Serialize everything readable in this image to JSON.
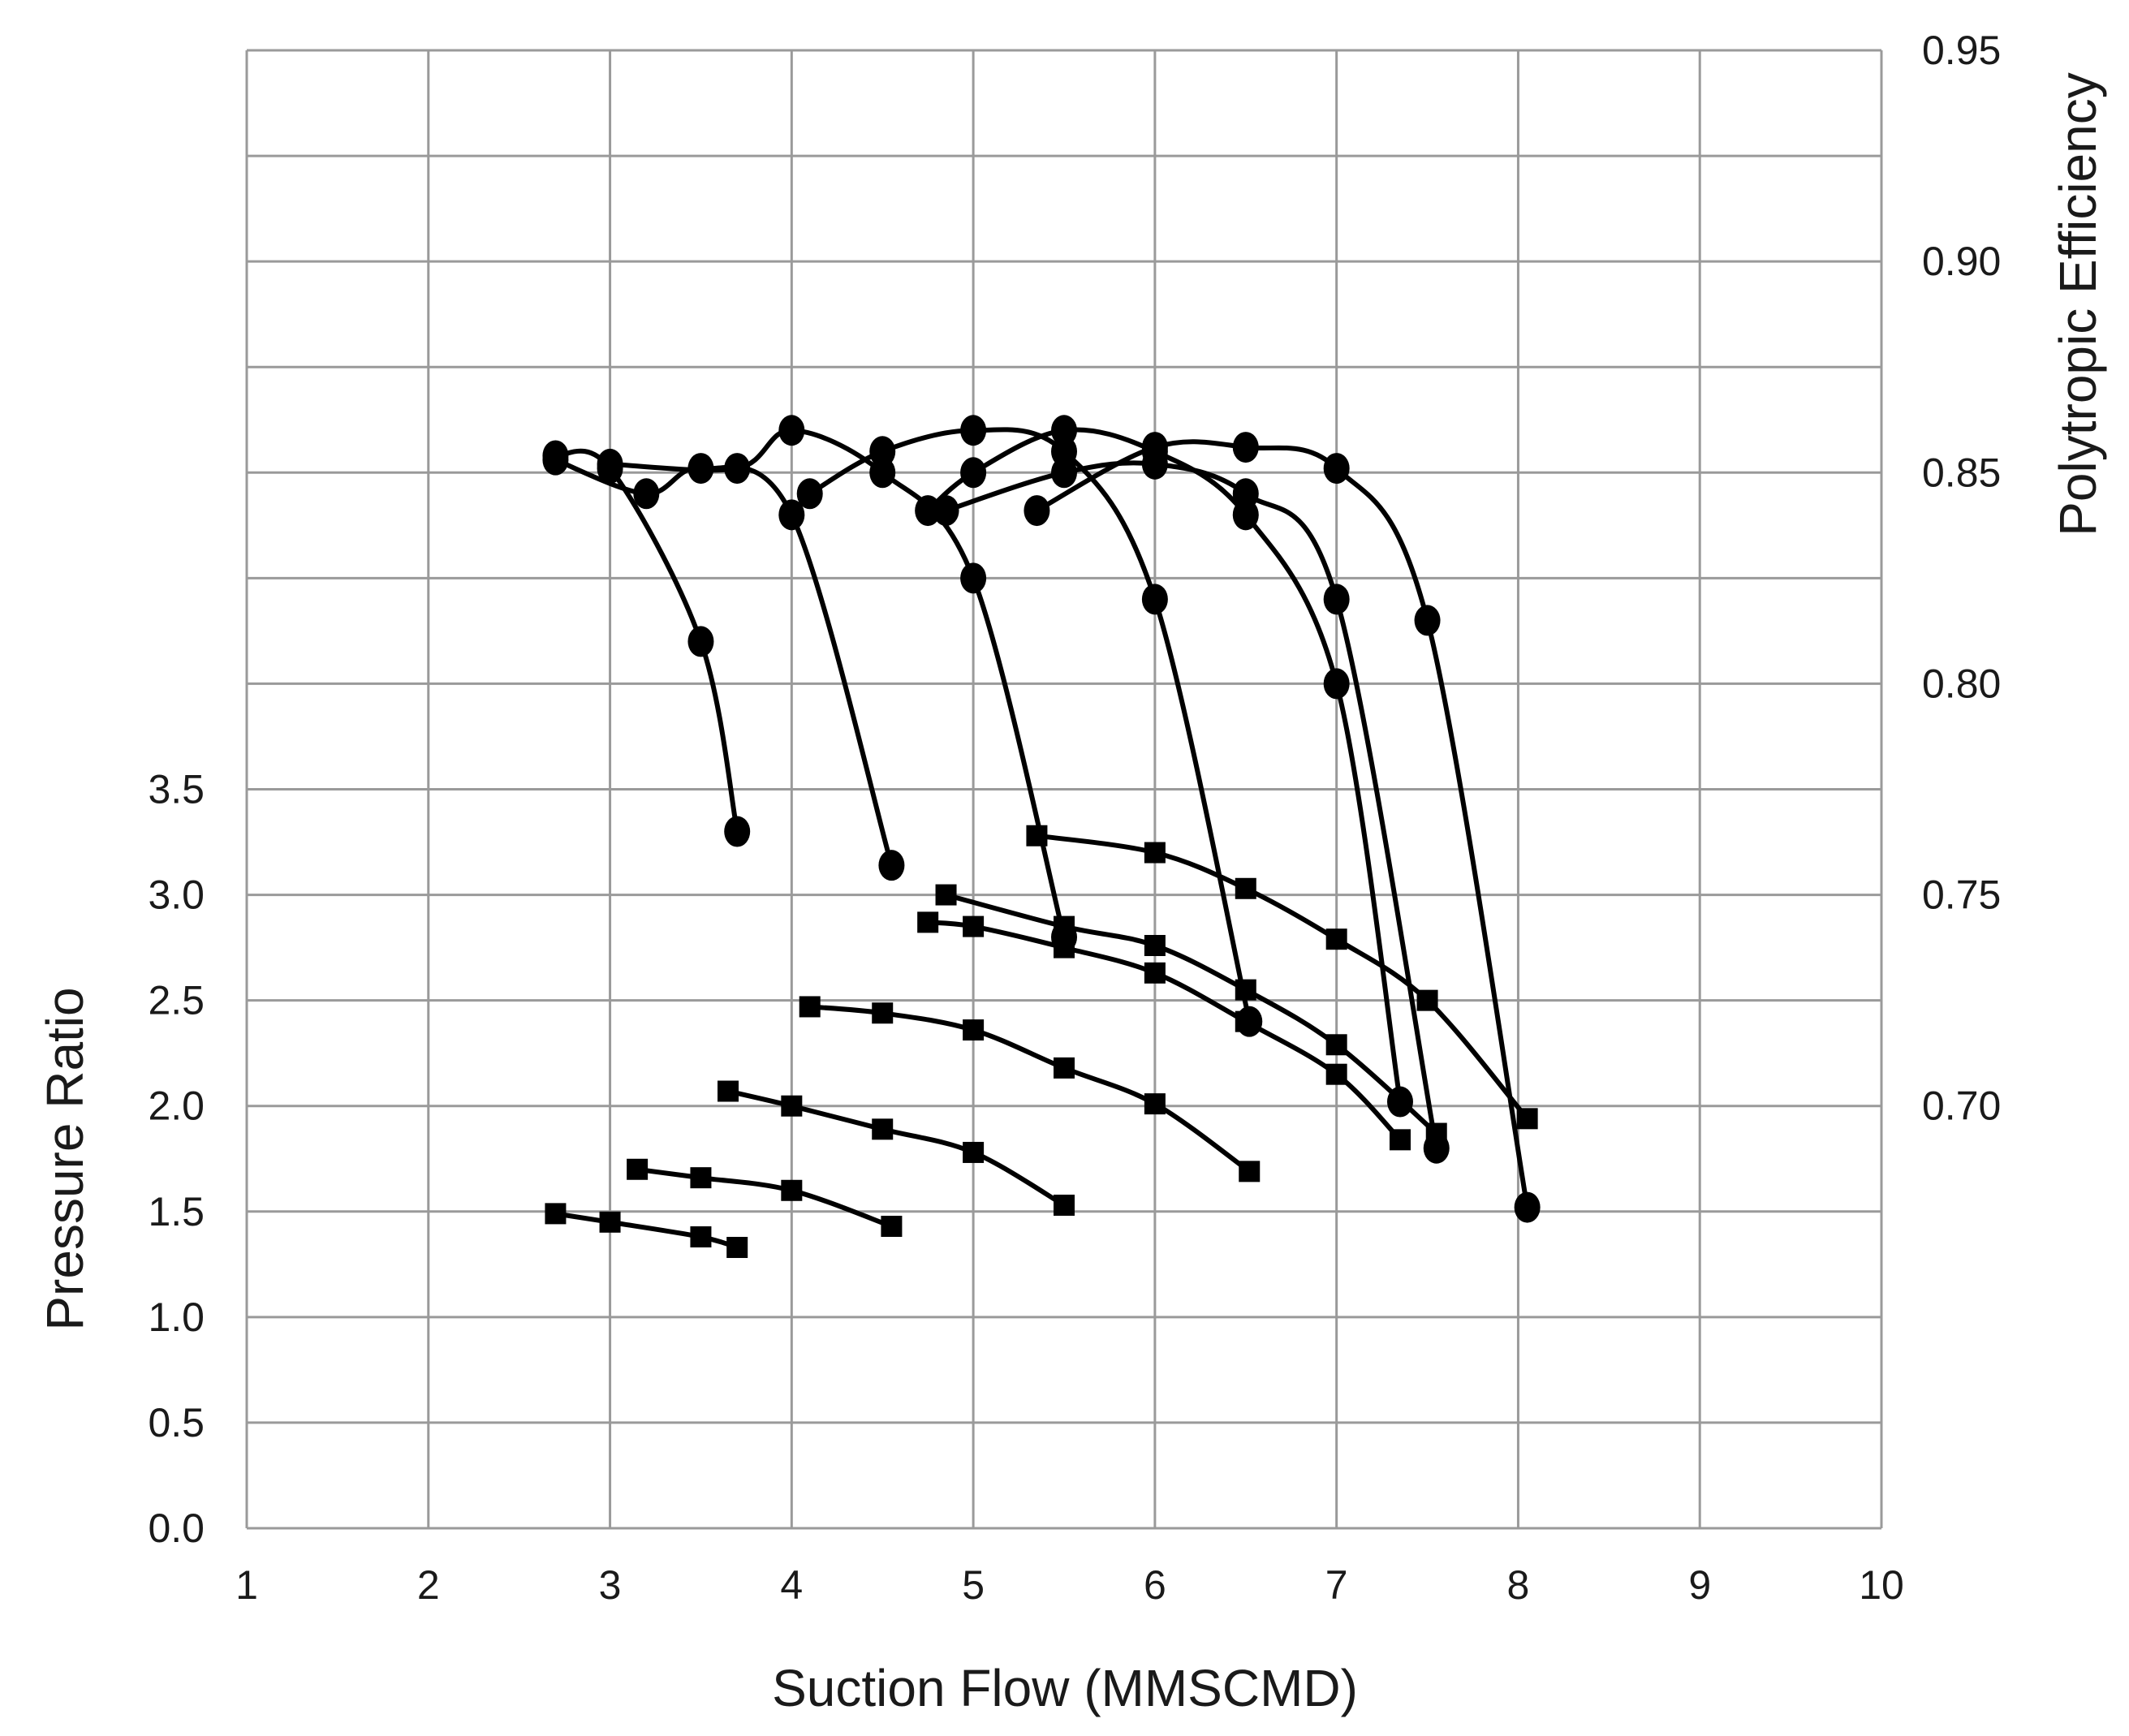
{
  "chart_data": {
    "type": "line",
    "xlabel": "Suction Flow (MMSCMD)",
    "ylabel_left": "Pressure Ratio",
    "ylabel_right": "Polytropic Efficiency",
    "xlim": [
      1,
      10
    ],
    "x_ticks": [
      "1",
      "2",
      "3",
      "4",
      "5",
      "6",
      "7",
      "8",
      "9",
      "10"
    ],
    "ylim_left": [
      0.0,
      7.0
    ],
    "y_ticks_left": [
      "0.0",
      "0.5",
      "1.0",
      "1.5",
      "2.0",
      "2.5",
      "3.0",
      "3.5"
    ],
    "ylim_right": [
      0.6,
      0.95
    ],
    "y_ticks_right": [
      "0.70",
      "0.75",
      "0.80",
      "0.85",
      "0.90",
      "0.95"
    ],
    "grid": true,
    "legend": "none",
    "pressure_ratio_series": [
      {
        "x": [
          2.7,
          3.0,
          3.5,
          3.7
        ],
        "y": [
          1.49,
          1.45,
          1.38,
          1.33
        ]
      },
      {
        "x": [
          3.15,
          3.5,
          4.0,
          4.55
        ],
        "y": [
          1.7,
          1.66,
          1.6,
          1.43
        ]
      },
      {
        "x": [
          3.65,
          4.0,
          4.5,
          5.0,
          5.5
        ],
        "y": [
          2.07,
          2.0,
          1.89,
          1.78,
          1.53
        ]
      },
      {
        "x": [
          4.1,
          4.5,
          5.0,
          5.5,
          6.0,
          6.52
        ],
        "y": [
          2.47,
          2.44,
          2.36,
          2.18,
          2.01,
          1.69
        ]
      },
      {
        "x": [
          4.75,
          5.0,
          5.5,
          6.0,
          6.5,
          7.0,
          7.35
        ],
        "y": [
          2.87,
          2.85,
          2.75,
          2.63,
          2.4,
          2.15,
          1.84
        ]
      },
      {
        "x": [
          4.85,
          5.5,
          6.0,
          6.5,
          7.0,
          7.55
        ],
        "y": [
          3.0,
          2.85,
          2.76,
          2.55,
          2.29,
          1.87
        ]
      },
      {
        "x": [
          5.35,
          6.0,
          6.5,
          7.0,
          7.5,
          8.05
        ],
        "y": [
          3.28,
          3.2,
          3.03,
          2.79,
          2.5,
          1.94
        ]
      }
    ],
    "efficiency_series": [
      {
        "x": [
          2.7,
          3.0,
          3.5,
          3.7
        ],
        "y": [
          0.854,
          0.851,
          0.81,
          0.765
        ]
      },
      {
        "x": [
          2.7,
          3.2,
          3.5,
          4.0,
          4.55
        ],
        "y": [
          0.853,
          0.845,
          0.851,
          0.84,
          0.757
        ]
      },
      {
        "x": [
          3.0,
          3.7,
          4.0,
          4.5,
          5.0,
          5.5
        ],
        "y": [
          0.852,
          0.851,
          0.86,
          0.85,
          0.825,
          0.74
        ]
      },
      {
        "x": [
          4.1,
          4.5,
          5.0,
          5.5,
          6.0,
          6.52
        ],
        "y": [
          0.845,
          0.855,
          0.86,
          0.855,
          0.82,
          0.72
        ]
      },
      {
        "x": [
          4.75,
          5.0,
          5.5,
          6.0,
          6.5,
          7.0,
          7.35
        ],
        "y": [
          0.841,
          0.85,
          0.86,
          0.855,
          0.84,
          0.8,
          0.701
        ]
      },
      {
        "x": [
          4.85,
          5.5,
          6.0,
          6.5,
          7.0,
          7.55
        ],
        "y": [
          0.841,
          0.85,
          0.852,
          0.845,
          0.82,
          0.69
        ]
      },
      {
        "x": [
          5.35,
          6.0,
          6.5,
          7.0,
          7.5,
          8.05
        ],
        "y": [
          0.841,
          0.856,
          0.856,
          0.851,
          0.815,
          0.676
        ]
      }
    ],
    "colors": {
      "line": "#000000",
      "grid": "#9a9a9a",
      "text": "#1a1a1a",
      "background": "#ffffff"
    },
    "markers": {
      "pressure_ratio": "square",
      "efficiency": "circle"
    }
  }
}
